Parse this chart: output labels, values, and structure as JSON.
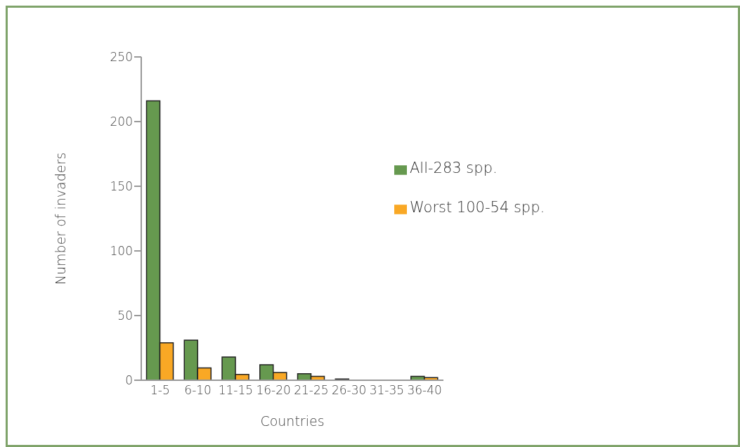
{
  "chart_data": {
    "type": "bar",
    "xlabel": "Countries",
    "ylabel": "Number of invaders",
    "categories": [
      "1-5",
      "6-10",
      "11-15",
      "16-20",
      "21-25",
      "26-30",
      "31-35",
      "36-40"
    ],
    "series": [
      {
        "name": "All-283 spp.",
        "color": "#66994f",
        "values": [
          216,
          31,
          18,
          12,
          5,
          1,
          0,
          3
        ]
      },
      {
        "name": "Worst 100-54 spp.",
        "color": "#f9a825",
        "values": [
          29,
          9.5,
          4.5,
          6,
          3,
          0,
          0,
          2
        ]
      }
    ],
    "ylim": [
      0,
      250
    ],
    "yticks": [
      0,
      50,
      100,
      150,
      200,
      250
    ],
    "grid": false,
    "legend": "top right"
  }
}
